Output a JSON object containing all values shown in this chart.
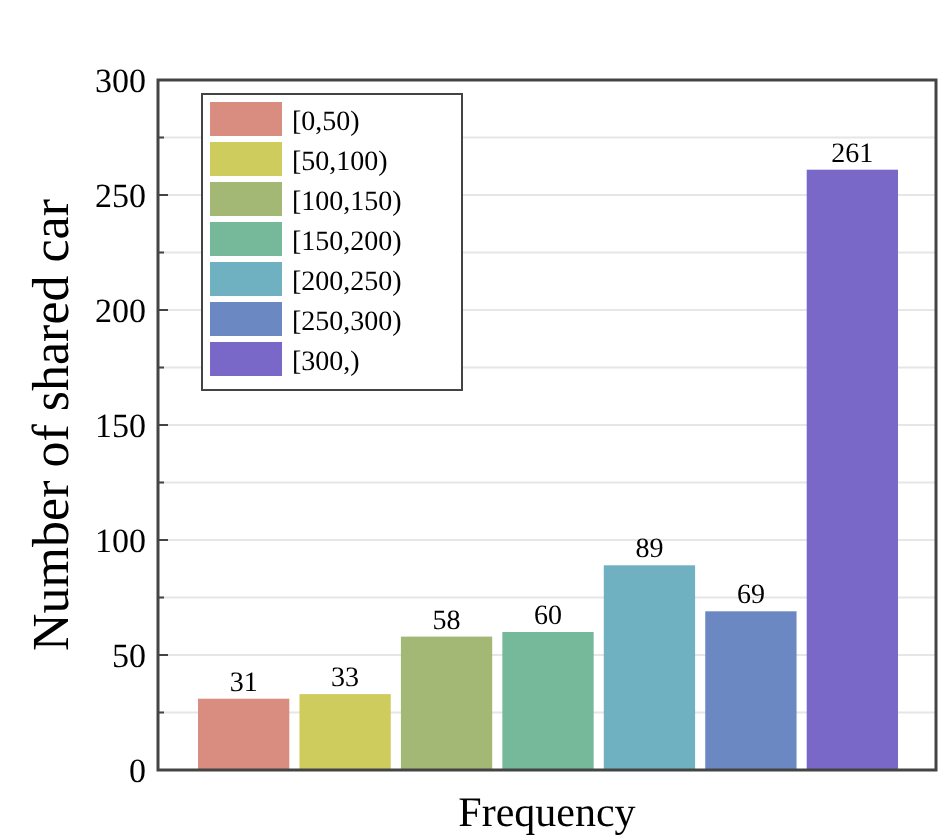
{
  "chart_data": {
    "type": "bar",
    "xlabel": "Frequency",
    "ylabel": "Number of shared car",
    "categories": [
      null,
      null,
      null,
      null,
      null,
      null,
      null
    ],
    "series": [
      {
        "name": "[0,50)",
        "color": "#d98c80",
        "values": [
          31,
          null,
          null,
          null,
          null,
          null,
          null
        ]
      },
      {
        "name": "[50,100)",
        "color": "#cfcc5e",
        "values": [
          null,
          33,
          null,
          null,
          null,
          null,
          null
        ]
      },
      {
        "name": "[100,150)",
        "color": "#a3b874",
        "values": [
          null,
          null,
          58,
          null,
          null,
          null,
          null
        ]
      },
      {
        "name": "[150,200)",
        "color": "#76b89a",
        "values": [
          null,
          null,
          null,
          60,
          null,
          null,
          null
        ]
      },
      {
        "name": "[200,250)",
        "color": "#6fb1c0",
        "values": [
          null,
          null,
          null,
          null,
          89,
          null,
          null
        ]
      },
      {
        "name": "[250,300)",
        "color": "#6c88c3",
        "values": [
          null,
          null,
          null,
          null,
          null,
          69,
          null
        ]
      },
      {
        "name": "[300,)",
        "color": "#7a68c8",
        "values": [
          null,
          null,
          null,
          null,
          null,
          null,
          261
        ]
      }
    ],
    "ylim": [
      0,
      300
    ],
    "yticks": [
      0,
      {
        "value": 25,
        "label": null
      },
      50,
      {
        "value": 75,
        "label": null
      },
      100,
      {
        "value": 125,
        "label": null
      },
      150,
      {
        "value": 175,
        "label": null
      },
      200,
      {
        "value": 225,
        "label": null
      },
      250,
      {
        "value": 275,
        "label": null
      },
      300
    ],
    "grid": "y",
    "legend": "top left",
    "data_labels": true
  }
}
